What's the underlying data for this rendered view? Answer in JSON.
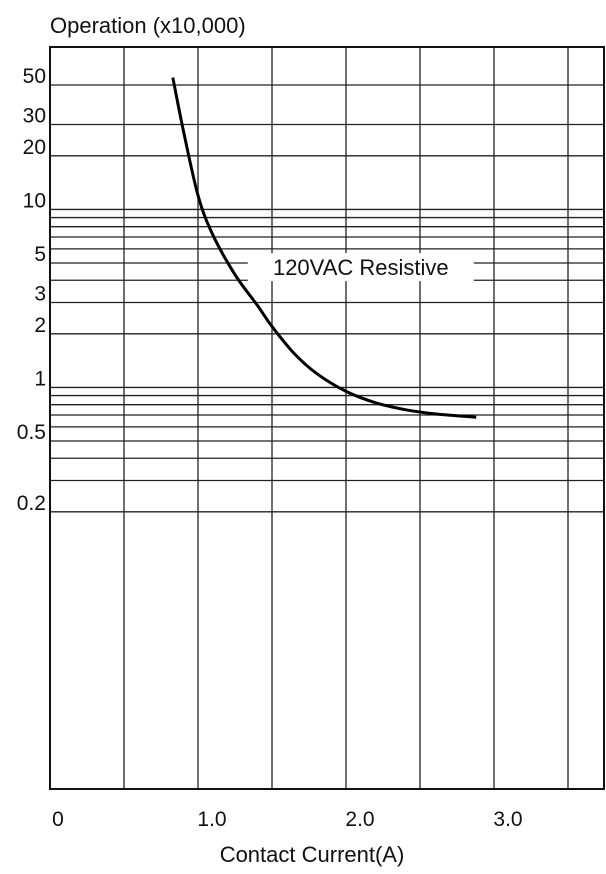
{
  "chart_data": {
    "type": "line",
    "title": "",
    "ylabel": "Operation (x10,000)",
    "xlabel": "Contact Current(A)",
    "x_ticks": [
      {
        "value": 0,
        "label": "0"
      },
      {
        "value": 1.0,
        "label": "1.0"
      },
      {
        "value": 2.0,
        "label": "2.0"
      },
      {
        "value": 3.0,
        "label": "3.0"
      }
    ],
    "x_grid": [
      0.5,
      1.0,
      1.5,
      2.0,
      2.5,
      3.0,
      3.5
    ],
    "xlim": [
      0,
      3.7
    ],
    "y_ticks": [
      {
        "value": 50,
        "label": "50"
      },
      {
        "value": 30,
        "label": "30"
      },
      {
        "value": 20,
        "label": "20"
      },
      {
        "value": 10,
        "label": "10"
      },
      {
        "value": 5,
        "label": "5"
      },
      {
        "value": 3,
        "label": "3"
      },
      {
        "value": 2,
        "label": "2"
      },
      {
        "value": 1,
        "label": "1"
      },
      {
        "value": 0.5,
        "label": "0.5"
      },
      {
        "value": 0.2,
        "label": "0.2"
      }
    ],
    "y_grid": [
      50,
      30,
      20,
      10,
      9,
      8,
      7,
      6,
      5,
      4,
      3,
      2,
      1,
      0.9,
      0.8,
      0.7,
      0.6,
      0.5,
      0.4,
      0.3,
      0.2
    ],
    "ylim": [
      0.1,
      60
    ],
    "y_scale": "log",
    "grid": true,
    "series": [
      {
        "name": "120VAC Resistive",
        "x": [
          0.83,
          0.9,
          1.0,
          1.1,
          1.25,
          1.4,
          1.5,
          1.65,
          1.8,
          2.0,
          2.2,
          2.4,
          2.6,
          2.88
        ],
        "y": [
          55,
          28,
          12,
          7.2,
          4.3,
          2.9,
          2.2,
          1.55,
          1.2,
          0.95,
          0.82,
          0.75,
          0.71,
          0.68
        ]
      }
    ],
    "annotations": [
      {
        "text": "120VAC Resistive",
        "x": 2.1,
        "y": 4.5
      }
    ]
  }
}
